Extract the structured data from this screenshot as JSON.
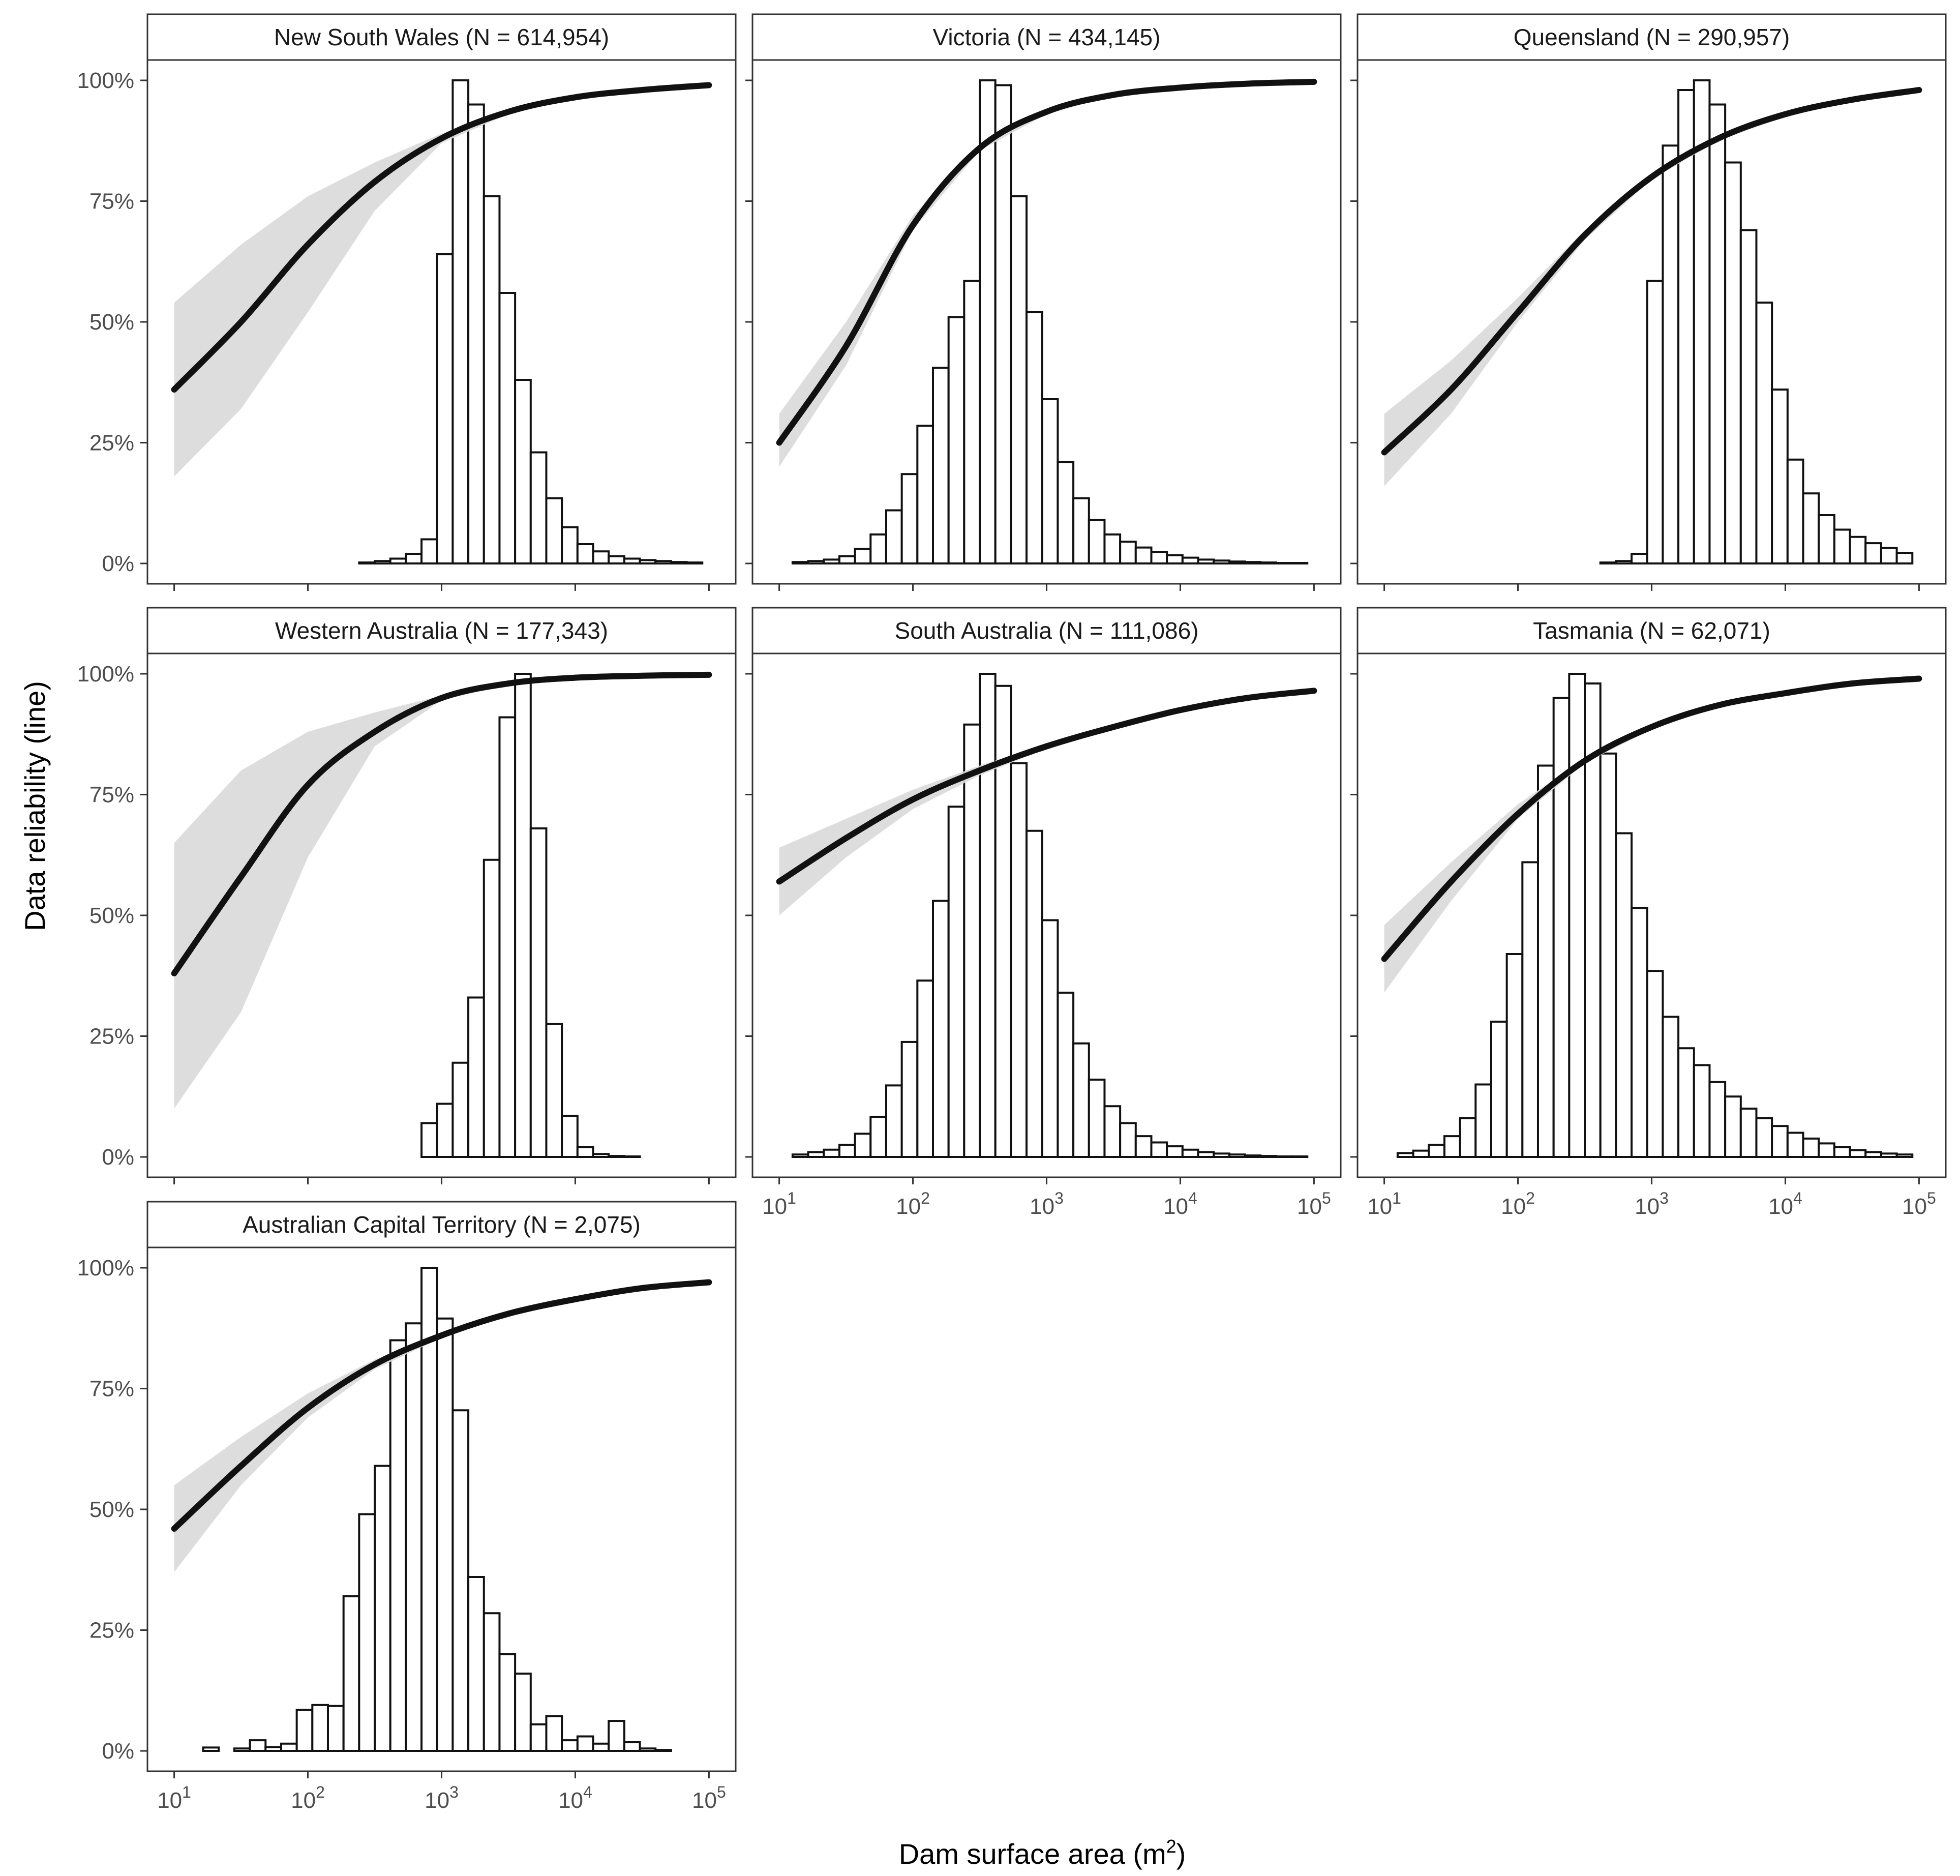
{
  "chart_data": {
    "type": "bar",
    "description_kind": "faceted histogram with fitted logistic reliability curve and confidence band",
    "xlabel": "Dam surface area (m",
    "xlabel_superscript": "2",
    "xlabel_suffix": ")",
    "ylabel": "Data reliability (line)",
    "x_scale": "log10",
    "x_ticks": [
      {
        "base": "10",
        "exp": "1"
      },
      {
        "base": "10",
        "exp": "2"
      },
      {
        "base": "10",
        "exp": "3"
      },
      {
        "base": "10",
        "exp": "4"
      },
      {
        "base": "10",
        "exp": "5"
      }
    ],
    "y_ticks": [
      "0%",
      "25%",
      "50%",
      "75%",
      "100%"
    ],
    "ylim": [
      0,
      1
    ],
    "bin_log_range": [
      1.1,
      4.95
    ],
    "colors": {
      "line": "#111111",
      "band": "#d9d9d9",
      "bar_fill": "#ffffff",
      "bar_edge": "#111111",
      "strip_fill": "#ffffff",
      "panel_border": "#333333",
      "tick_label": "#4d4d4d"
    },
    "panels": [
      {
        "title": "New South Wales (N = 614,954)",
        "curve_logx": [
          1,
          1.5,
          2,
          2.5,
          3,
          3.5,
          4,
          4.5,
          5
        ],
        "curve": [
          0.36,
          0.5,
          0.66,
          0.79,
          0.88,
          0.935,
          0.965,
          0.98,
          0.99
        ],
        "band_low": [
          0.18,
          0.32,
          0.52,
          0.73,
          0.87,
          0.93,
          0.962,
          0.978,
          0.988
        ],
        "band_high": [
          0.54,
          0.66,
          0.76,
          0.83,
          0.89,
          0.94,
          0.968,
          0.982,
          0.992
        ],
        "histogram": [
          0,
          0,
          0,
          0,
          0,
          0,
          0,
          0,
          0,
          0,
          0,
          0.002,
          0.005,
          0.01,
          0.02,
          0.05,
          0.64,
          1.0,
          0.95,
          0.76,
          0.56,
          0.38,
          0.23,
          0.135,
          0.075,
          0.04,
          0.025,
          0.015,
          0.01,
          0.007,
          0.005,
          0.003,
          0.002
        ]
      },
      {
        "title": "Victoria (N = 434,145)",
        "curve_logx": [
          1,
          1.5,
          2,
          2.5,
          3,
          3.5,
          4,
          4.5,
          5
        ],
        "curve": [
          0.25,
          0.45,
          0.7,
          0.86,
          0.935,
          0.97,
          0.985,
          0.993,
          0.997
        ],
        "band_low": [
          0.2,
          0.41,
          0.69,
          0.855,
          0.93,
          0.968,
          0.984,
          0.992,
          0.996
        ],
        "band_high": [
          0.31,
          0.5,
          0.72,
          0.865,
          0.94,
          0.972,
          0.986,
          0.994,
          0.998
        ],
        "histogram": [
          0.003,
          0.005,
          0.008,
          0.015,
          0.03,
          0.06,
          0.11,
          0.185,
          0.285,
          0.405,
          0.51,
          0.585,
          1.0,
          0.99,
          0.76,
          0.52,
          0.34,
          0.21,
          0.135,
          0.09,
          0.06,
          0.045,
          0.033,
          0.024,
          0.017,
          0.012,
          0.008,
          0.006,
          0.004,
          0.003,
          0.002,
          0.001,
          0.001
        ]
      },
      {
        "title": "Queensland (N = 290,957)",
        "curve_logx": [
          1,
          1.5,
          2,
          2.5,
          3,
          3.5,
          4,
          4.5,
          5
        ],
        "curve": [
          0.23,
          0.36,
          0.52,
          0.68,
          0.8,
          0.88,
          0.93,
          0.96,
          0.98
        ],
        "band_low": [
          0.16,
          0.31,
          0.5,
          0.67,
          0.795,
          0.875,
          0.925,
          0.957,
          0.978
        ],
        "band_high": [
          0.31,
          0.42,
          0.55,
          0.69,
          0.805,
          0.885,
          0.935,
          0.963,
          0.982
        ],
        "histogram": [
          0,
          0,
          0,
          0,
          0,
          0,
          0,
          0,
          0,
          0,
          0,
          0,
          0,
          0.002,
          0.005,
          0.02,
          0.585,
          0.865,
          0.98,
          1.0,
          0.95,
          0.83,
          0.69,
          0.54,
          0.36,
          0.215,
          0.145,
          0.1,
          0.07,
          0.055,
          0.042,
          0.032,
          0.022
        ]
      },
      {
        "title": "Western Australia (N = 177,343)",
        "curve_logx": [
          1,
          1.5,
          2,
          2.5,
          3,
          3.5,
          4,
          4.5,
          5
        ],
        "curve": [
          0.38,
          0.58,
          0.77,
          0.88,
          0.95,
          0.98,
          0.992,
          0.996,
          0.998
        ],
        "band_low": [
          0.1,
          0.3,
          0.62,
          0.85,
          0.945,
          0.978,
          0.99,
          0.995,
          0.997
        ],
        "band_high": [
          0.65,
          0.8,
          0.88,
          0.92,
          0.955,
          0.982,
          0.993,
          0.997,
          0.999
        ],
        "histogram": [
          0,
          0,
          0,
          0,
          0,
          0,
          0,
          0,
          0,
          0,
          0,
          0,
          0,
          0,
          0,
          0.07,
          0.11,
          0.195,
          0.33,
          0.615,
          0.91,
          1.0,
          0.68,
          0.275,
          0.085,
          0.02,
          0.006,
          0.002,
          0.001,
          0,
          0,
          0,
          0
        ]
      },
      {
        "title": "South Australia (N = 111,086)",
        "curve_logx": [
          1,
          1.5,
          2,
          2.5,
          3,
          3.5,
          4,
          4.5,
          5
        ],
        "curve": [
          0.57,
          0.66,
          0.74,
          0.8,
          0.85,
          0.89,
          0.925,
          0.95,
          0.965
        ],
        "band_low": [
          0.5,
          0.62,
          0.72,
          0.79,
          0.845,
          0.888,
          0.922,
          0.947,
          0.962
        ],
        "band_high": [
          0.64,
          0.7,
          0.76,
          0.81,
          0.855,
          0.895,
          0.928,
          0.953,
          0.968
        ],
        "histogram": [
          0.005,
          0.01,
          0.015,
          0.025,
          0.048,
          0.083,
          0.148,
          0.238,
          0.365,
          0.53,
          0.725,
          0.895,
          1.0,
          0.975,
          0.815,
          0.675,
          0.49,
          0.34,
          0.235,
          0.16,
          0.105,
          0.07,
          0.043,
          0.03,
          0.022,
          0.015,
          0.01,
          0.007,
          0.005,
          0.003,
          0.002,
          0.001,
          0.001
        ]
      },
      {
        "title": "Tasmania (N = 62,071)",
        "curve_logx": [
          1,
          1.5,
          2,
          2.5,
          3,
          3.5,
          4,
          4.5,
          5
        ],
        "curve": [
          0.41,
          0.57,
          0.71,
          0.82,
          0.89,
          0.935,
          0.96,
          0.98,
          0.99
        ],
        "band_low": [
          0.34,
          0.53,
          0.7,
          0.815,
          0.885,
          0.932,
          0.958,
          0.978,
          0.988
        ],
        "band_high": [
          0.48,
          0.61,
          0.73,
          0.825,
          0.895,
          0.938,
          0.962,
          0.982,
          0.992
        ],
        "histogram": [
          0.008,
          0.013,
          0.025,
          0.043,
          0.08,
          0.15,
          0.28,
          0.42,
          0.61,
          0.81,
          0.95,
          1.0,
          0.98,
          0.835,
          0.67,
          0.515,
          0.385,
          0.29,
          0.225,
          0.19,
          0.155,
          0.125,
          0.1,
          0.08,
          0.064,
          0.05,
          0.038,
          0.028,
          0.02,
          0.014,
          0.01,
          0.007,
          0.005
        ]
      },
      {
        "title": "Australian Capital Territory (N = 2,075)",
        "curve_logx": [
          1,
          1.5,
          2,
          2.5,
          3,
          3.5,
          4,
          4.5,
          5
        ],
        "curve": [
          0.46,
          0.59,
          0.71,
          0.8,
          0.86,
          0.905,
          0.935,
          0.958,
          0.97
        ],
        "band_low": [
          0.37,
          0.55,
          0.69,
          0.79,
          0.855,
          0.9,
          0.932,
          0.955,
          0.967
        ],
        "band_high": [
          0.55,
          0.65,
          0.74,
          0.81,
          0.865,
          0.91,
          0.94,
          0.961,
          0.973
        ],
        "histogram": [
          0,
          0.007,
          0,
          0.005,
          0.022,
          0.008,
          0.015,
          0.085,
          0.095,
          0.093,
          0.32,
          0.49,
          0.59,
          0.85,
          0.885,
          1.0,
          0.895,
          0.705,
          0.36,
          0.285,
          0.2,
          0.16,
          0.055,
          0.072,
          0.022,
          0.03,
          0.015,
          0.062,
          0.018,
          0.005,
          0.002,
          0,
          0
        ]
      }
    ]
  }
}
